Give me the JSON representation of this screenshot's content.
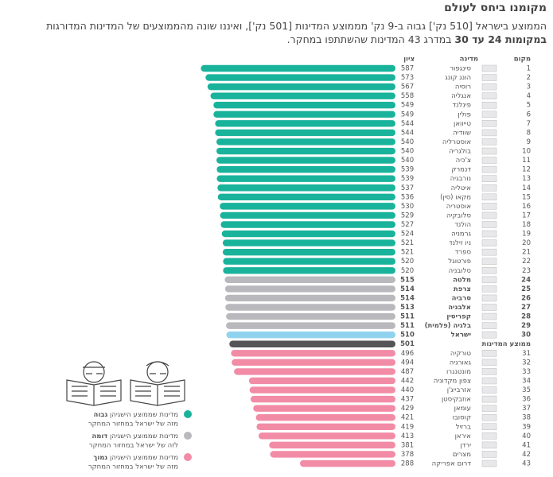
{
  "chart_data": {
    "type": "bar",
    "title": "מקומנו ביחס לעולם",
    "description": [
      "הממוצע בישראל [510 נק'] גבוה ב-9 נק' מממוצע המדינות [501 נק'], ואיננו שונה מהממוצעים של המדינות המדורגות ",
      "במקומות 24 עד 30",
      " במדרג 43 המדינות שהשתתפו במחקר."
    ],
    "column_headers": {
      "rank": "מקום",
      "country": "מדינה",
      "score": "ציון"
    },
    "ranks": [
      1,
      2,
      3,
      4,
      5,
      6,
      7,
      8,
      9,
      10,
      11,
      12,
      13,
      14,
      15,
      16,
      17,
      18,
      19,
      20,
      21,
      22,
      23,
      24,
      25,
      26,
      27,
      28,
      29,
      30,
      31,
      32,
      33,
      34,
      35,
      36,
      37,
      38,
      39,
      40,
      41,
      42,
      43
    ],
    "categories": [
      "סינגפור",
      "הונג קונג",
      "רוסיה",
      "אנגליה",
      "פינלנד",
      "פולין",
      "טייוואן",
      "שוודיה",
      "אוסטרליה",
      "בולגריה",
      "צ'כיה",
      "דנמרק",
      "נורבגיה",
      "איטליה",
      "מקאו (סין)",
      "אוסטריה",
      "סלובקיה",
      "הולנד",
      "גרמניה",
      "ניו זילנד",
      "ספרד",
      "פורטוגל",
      "סלובניה",
      "מלטה",
      "צרפת",
      "סרביה",
      "אלבניה",
      "קפריסין",
      "בלגיה (פלמית)",
      "ישראל",
      "טורקיה",
      "גאורגיה",
      "מונטנגרו",
      "צפון מקדוניה",
      "אזרבייג'ן",
      "אוזבקיסטן",
      "עומאן",
      "קוסובו",
      "ברזיל",
      "איראן",
      "ירדן",
      "מצרים",
      "דרום אפריקה"
    ],
    "values": [
      587,
      573,
      567,
      558,
      549,
      549,
      544,
      544,
      540,
      540,
      540,
      539,
      539,
      537,
      536,
      530,
      529,
      527,
      524,
      521,
      521,
      520,
      520,
      515,
      514,
      514,
      513,
      511,
      511,
      510,
      496,
      494,
      487,
      442,
      440,
      437,
      429,
      421,
      419,
      413,
      381,
      378,
      288
    ],
    "colors": [
      "#19b39b",
      "#19b39b",
      "#19b39b",
      "#19b39b",
      "#19b39b",
      "#19b39b",
      "#19b39b",
      "#19b39b",
      "#19b39b",
      "#19b39b",
      "#19b39b",
      "#19b39b",
      "#19b39b",
      "#19b39b",
      "#19b39b",
      "#19b39b",
      "#19b39b",
      "#19b39b",
      "#19b39b",
      "#19b39b",
      "#19b39b",
      "#19b39b",
      "#19b39b",
      "#b9b9bd",
      "#b9b9bd",
      "#b9b9bd",
      "#b9b9bd",
      "#b9b9bd",
      "#b9b9bd",
      "#8fd3ee",
      "#f28ba6",
      "#f28ba6",
      "#f28ba6",
      "#f28ba6",
      "#f28ba6",
      "#f28ba6",
      "#f28ba6",
      "#f28ba6",
      "#f28ba6",
      "#f28ba6",
      "#f28ba6",
      "#f28ba6",
      "#f28ba6"
    ],
    "average": {
      "label": "ממוצע המדינות",
      "value": 501,
      "color": "#555558",
      "after_rank": 30
    },
    "xlim": [
      0,
      600
    ],
    "legend": [
      {
        "text": "מדינות שממוצע הישגיהן",
        "bold": "גבוה",
        "note": "מזה של ישראל במחזור המחקר",
        "color": "#19b39b"
      },
      {
        "text": "מדינות שממוצע הישגיהן",
        "bold": "דומה",
        "note": "לזה של ישראל במחזור המחקר",
        "color": "#b9b9bd"
      },
      {
        "text": "מדינות שממוצע הישגיהן",
        "bold": "נמוך",
        "note": "מזה של ישראל במחזור המחקר",
        "color": "#f28ba6"
      }
    ]
  }
}
